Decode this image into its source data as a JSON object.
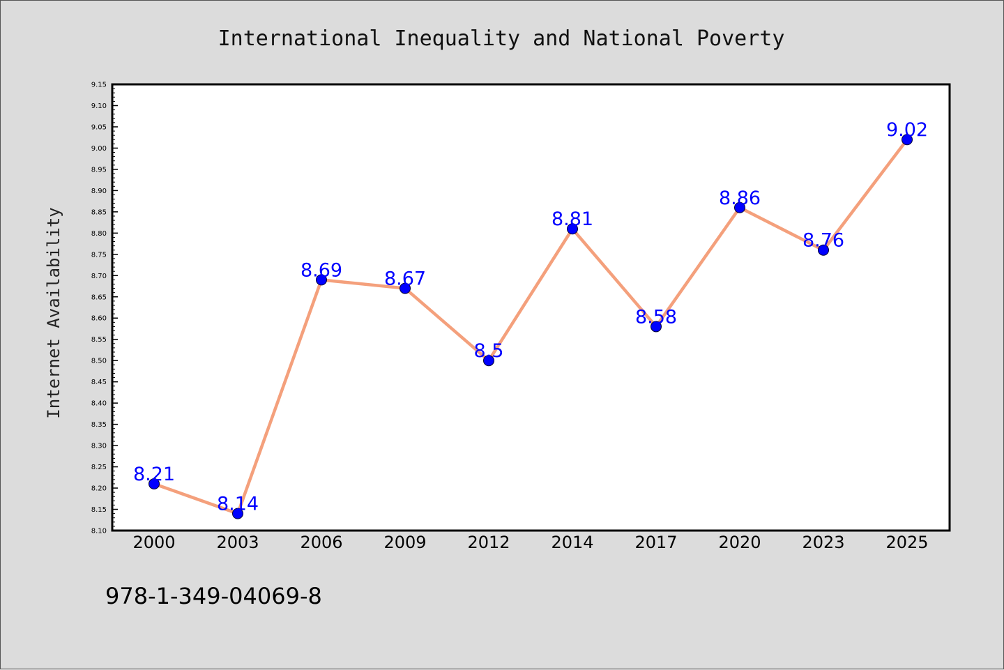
{
  "chart_data": {
    "type": "line",
    "title": "International Inequality and National Poverty",
    "xlabel": "",
    "ylabel": "Internet Availability",
    "categories": [
      "2000",
      "2003",
      "2006",
      "2009",
      "2012",
      "2014",
      "2017",
      "2020",
      "2023",
      "2025"
    ],
    "values": [
      8.21,
      8.14,
      8.69,
      8.67,
      8.5,
      8.81,
      8.58,
      8.86,
      8.76,
      9.02
    ],
    "data_labels": [
      "8.21",
      "8.14",
      "8.69",
      "8.67",
      "8.5",
      "8.81",
      "8.58",
      "8.86",
      "8.76",
      "9.02"
    ],
    "ylim": [
      8.1,
      9.15
    ],
    "yticks": [
      "8.10",
      "8.15",
      "8.20",
      "8.25",
      "8.30",
      "8.35",
      "8.40",
      "8.45",
      "8.50",
      "8.55",
      "8.60",
      "8.65",
      "8.70",
      "8.75",
      "8.80",
      "8.85",
      "8.90",
      "8.95",
      "9.00",
      "9.05",
      "9.10",
      "9.15"
    ],
    "grid": false,
    "legend": "none",
    "colors": {
      "line": "#f4a07c",
      "marker": "#0000ff",
      "label": "#0000ff",
      "page_background": "#dcdcdc",
      "plot_background": "#ffffff"
    }
  },
  "footer": {
    "isbn": "978-1-349-04069-8"
  }
}
